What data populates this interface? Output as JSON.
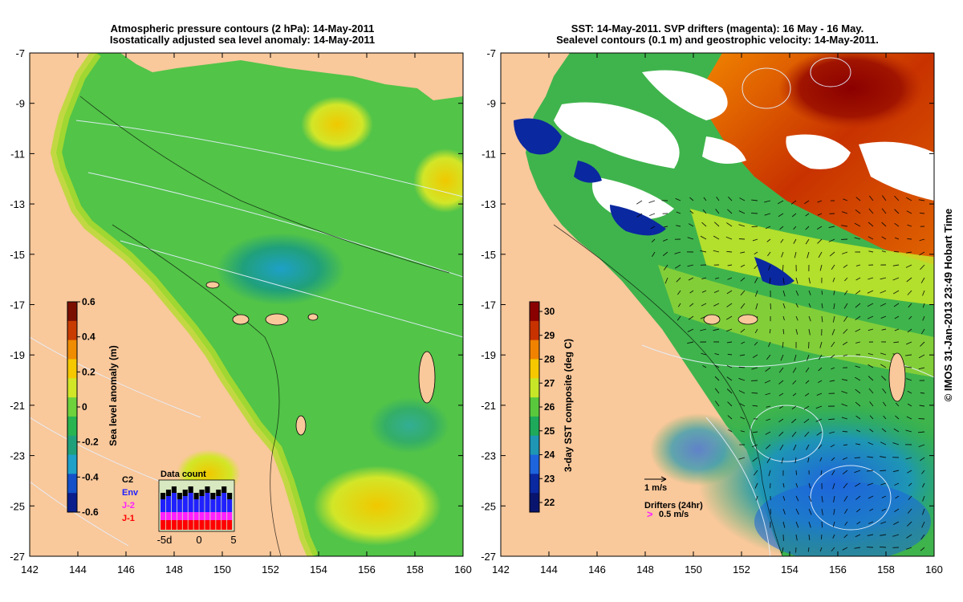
{
  "left_panel": {
    "title_line1": "Atmospheric pressure contours (2 hPa): 14-May-2011",
    "title_line2": "Isostatically adjusted sea level anomaly: 14-May-2011",
    "colorbar": {
      "label": "Sea level anomaly (m)",
      "ticks": [
        "0.6",
        "0.4",
        "0.2",
        "0",
        "-0.2",
        "-0.4",
        "-0.6"
      ],
      "colors": [
        "#7a0f00",
        "#c83c00",
        "#f08c00",
        "#f5c800",
        "#d2e628",
        "#6ed23c",
        "#28b450",
        "#20a07a",
        "#1ea0c8",
        "#1450c8",
        "#0a1e8c"
      ]
    },
    "missions": {
      "labels": [
        "C2",
        "Env",
        "J-2",
        "J-1"
      ],
      "colors": [
        "#000000",
        "#2020ff",
        "#ff20ff",
        "#ff0000"
      ]
    },
    "data_count": {
      "title": "Data count",
      "axis_ticks": [
        "-5d",
        "0",
        "5"
      ]
    }
  },
  "right_panel": {
    "title_line1": "SST: 14-May-2011. SVP drifters (magenta): 16 May - 16 May.",
    "title_line2": "Sealevel contours (0.1 m) and geostrophic velocity: 14-May-2011.",
    "colorbar": {
      "label": "3-day SST composite (deg C)",
      "ticks": [
        "30",
        "29",
        "28",
        "27",
        "26",
        "25",
        "24",
        "23",
        "22"
      ],
      "colors": [
        "#8b0000",
        "#c83200",
        "#f08200",
        "#f5c800",
        "#c8e628",
        "#5ac83c",
        "#1eaa5a",
        "#1e96b4",
        "#1e64dc",
        "#0a28a0",
        "#08146e"
      ]
    },
    "velocity_scale_label": "1 m/s",
    "drifters_label": "Drifters (24hr)",
    "drifters_speed_label": "0.5 m/s"
  },
  "axes": {
    "x_ticks": [
      "142",
      "144",
      "146",
      "148",
      "150",
      "152",
      "154",
      "156",
      "158",
      "160"
    ],
    "y_ticks": [
      "-7",
      "-9",
      "-11",
      "-13",
      "-15",
      "-17",
      "-19",
      "-21",
      "-23",
      "-25",
      "-27"
    ],
    "lon_range": [
      142,
      160
    ],
    "lat_range": [
      -27,
      -7
    ]
  },
  "colors": {
    "land": "#f9c89b",
    "left_sea": "#4fc24a",
    "right_sea": "#3fb44c"
  },
  "credit": "© IMOS 31-Jan-2013 23:49 Hobart Time"
}
